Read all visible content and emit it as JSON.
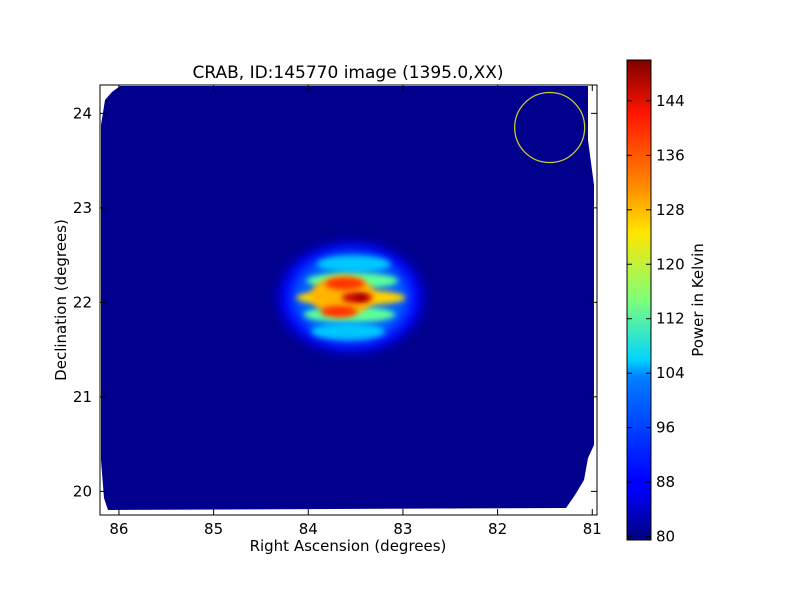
{
  "chart_data": {
    "type": "heatmap",
    "title": "CRAB, ID:145770 image (1395.0,XX)",
    "xlabel": "Right Ascension (degrees)",
    "ylabel": "Declination (degrees)",
    "xlim": [
      86.2,
      80.95
    ],
    "ylim": [
      19.75,
      24.3
    ],
    "x_ticks": [
      86,
      85,
      84,
      83,
      82,
      81
    ],
    "y_ticks": [
      20,
      21,
      22,
      23,
      24
    ],
    "x_inverted": true,
    "grid": false,
    "colormap": "jet",
    "colorbar": {
      "label": "Power in Kelvin",
      "range": [
        79.5,
        150
      ],
      "ticks": [
        80,
        88,
        96,
        104,
        112,
        120,
        128,
        136,
        144
      ]
    },
    "background_value": 80,
    "peak": {
      "ra": 83.55,
      "dec": 22.05,
      "value": 149
    },
    "source_extent": {
      "ra": [
        82.8,
        84.4
      ],
      "dec": [
        21.45,
        22.55
      ]
    },
    "beam_marker": {
      "shape": "circle",
      "ra": 81.45,
      "dec": 23.85,
      "color": "#c8c832"
    }
  }
}
